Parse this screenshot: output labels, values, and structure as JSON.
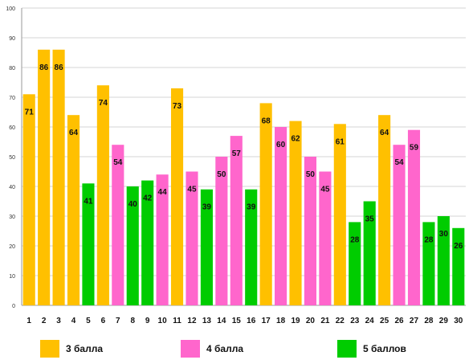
{
  "chart_data": {
    "type": "bar",
    "categories": [
      "1",
      "2",
      "3",
      "4",
      "5",
      "6",
      "7",
      "8",
      "9",
      "10",
      "11",
      "12",
      "13",
      "14",
      "15",
      "16",
      "17",
      "18",
      "19",
      "20",
      "21",
      "22",
      "23",
      "24",
      "25",
      "26",
      "27",
      "28",
      "29",
      "30"
    ],
    "values": [
      71,
      86,
      86,
      64,
      41,
      74,
      54,
      40,
      42,
      44,
      73,
      45,
      39,
      50,
      57,
      39,
      68,
      60,
      62,
      50,
      45,
      61,
      28,
      35,
      64,
      54,
      59,
      28,
      30,
      26
    ],
    "groups": [
      "3 балла",
      "3 балла",
      "3 балла",
      "3 балла",
      "5 баллов",
      "3 балла",
      "4 балла",
      "5 баллов",
      "5 баллов",
      "4 балла",
      "3 балла",
      "4 балла",
      "5 баллов",
      "4 балла",
      "4 балла",
      "5 баллов",
      "3 балла",
      "4 балла",
      "3 балла",
      "4 балла",
      "4 балла",
      "3 балла",
      "5 баллов",
      "5 баллов",
      "3 балла",
      "4 балла",
      "4 балла",
      "5 баллов",
      "5 баллов",
      "5 баллов"
    ],
    "legend": [
      {
        "name": "3 балла",
        "color": "#FFC000"
      },
      {
        "name": "4 балла",
        "color": "#FF66CC"
      },
      {
        "name": "5 баллов",
        "color": "#00CC00"
      }
    ],
    "title": "",
    "xlabel": "",
    "ylabel": "",
    "ylim": [
      0,
      100
    ],
    "yticks": [
      "0",
      "10",
      "20",
      "30",
      "40",
      "50",
      "60",
      "70",
      "80",
      "90",
      "100"
    ],
    "grid": true,
    "legend_position": "bottom"
  }
}
